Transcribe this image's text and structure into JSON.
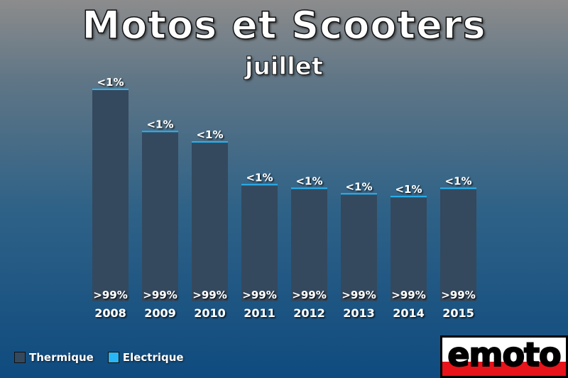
{
  "title": "Motos et Scooters",
  "subtitle": "juillet",
  "legend": [
    {
      "label": "Thermique",
      "color": "#34495e"
    },
    {
      "label": "Electrique",
      "color": "#29b6f6"
    }
  ],
  "logo": {
    "text": "emoto"
  },
  "colors": {
    "thermique": "#34495e",
    "electrique": "#29b6f6"
  },
  "chart_data": {
    "type": "bar",
    "stacked": true,
    "categories": [
      "2008",
      "2009",
      "2010",
      "2011",
      "2012",
      "2013",
      "2014",
      "2015"
    ],
    "series": [
      {
        "name": "Thermique",
        "labels": [
          ">99%",
          ">99%",
          ">99%",
          ">99%",
          ">99%",
          ">99%",
          ">99%",
          ">99%"
        ]
      },
      {
        "name": "Electrique",
        "labels": [
          "<1%",
          "<1%",
          "<1%",
          "<1%",
          "<1%",
          "<1%",
          "<1%",
          "<1%"
        ]
      }
    ],
    "totals_relative": [
      1.0,
      0.802,
      0.753,
      0.552,
      0.535,
      0.509,
      0.496,
      0.535
    ],
    "title": "Motos et Scooters",
    "subtitle": "juillet",
    "xlabel": "",
    "ylabel": "",
    "grid": false,
    "legend_position": "bottom-left"
  }
}
